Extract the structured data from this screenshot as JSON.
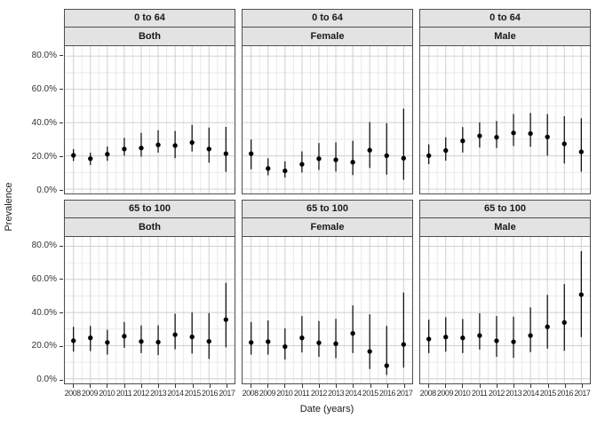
{
  "colors": {
    "background": "#ffffff",
    "strip_bg": "#e3e3e3",
    "panel_border": "#4d4d4d",
    "grid_major": "#cfcfcf",
    "grid_minor": "#e9e9e9",
    "point": "#000000",
    "axis_text": "#333333"
  },
  "chart_data": {
    "type": "pointrange",
    "title": "",
    "xlabel": "Date (years)",
    "ylabel": "Prevalence",
    "grid": true,
    "legend": "none",
    "x": [
      2008,
      2009,
      2010,
      2011,
      2012,
      2013,
      2014,
      2015,
      2016,
      2017
    ],
    "y_tick_labels": [
      "80.0%",
      "60.0%",
      "40.0%",
      "20.0%",
      "0.0%"
    ],
    "y_tick_values": [
      80,
      60,
      40,
      20,
      0
    ],
    "ylim_percent": [
      -3,
      85
    ],
    "facet_row_labels": [
      "0 to 64",
      "65 to 100"
    ],
    "facet_col_labels": [
      "Both",
      "Female",
      "Male"
    ],
    "panels": [
      {
        "age": "0 to 64",
        "sex": "Both",
        "est": [
          20.3,
          18.3,
          21.0,
          24.1,
          24.7,
          26.6,
          26.2,
          28.0,
          24.1,
          21.3
        ],
        "lo": [
          16.9,
          14.5,
          17.0,
          20.1,
          19.5,
          21.9,
          18.6,
          22.6,
          15.9,
          10.4
        ],
        "hi": [
          24.1,
          21.9,
          25.6,
          30.8,
          33.8,
          35.4,
          35.0,
          38.6,
          37.0,
          37.4
        ]
      },
      {
        "age": "0 to 64",
        "sex": "Female",
        "est": [
          21.3,
          12.4,
          11.0,
          14.9,
          18.3,
          17.6,
          16.2,
          23.4,
          20.1,
          18.6
        ],
        "lo": [
          11.9,
          8.3,
          6.9,
          10.0,
          11.5,
          10.5,
          8.4,
          12.7,
          8.7,
          5.6
        ],
        "hi": [
          29.8,
          18.5,
          16.7,
          22.7,
          27.7,
          28.1,
          29.1,
          40.3,
          39.6,
          48.4
        ]
      },
      {
        "age": "0 to 64",
        "sex": "Male",
        "est": [
          20.1,
          23.2,
          29.0,
          32.0,
          31.2,
          33.8,
          33.4,
          31.4,
          27.2,
          22.4
        ],
        "lo": [
          15.0,
          17.1,
          22.0,
          25.0,
          24.7,
          25.9,
          25.4,
          20.1,
          15.4,
          10.5
        ],
        "hi": [
          26.9,
          31.2,
          37.3,
          40.1,
          40.9,
          45.2,
          45.8,
          45.1,
          43.8,
          42.6
        ]
      },
      {
        "age": "65 to 100",
        "sex": "Both",
        "est": [
          23.0,
          24.7,
          21.9,
          25.7,
          22.5,
          22.1,
          26.6,
          25.3,
          22.6,
          35.7
        ],
        "lo": [
          16.4,
          16.7,
          14.6,
          18.7,
          15.5,
          14.3,
          17.8,
          15.2,
          12.0,
          19.0
        ],
        "hi": [
          31.4,
          31.9,
          29.6,
          34.3,
          32.2,
          32.3,
          39.3,
          40.1,
          39.7,
          57.9
        ]
      },
      {
        "age": "65 to 100",
        "sex": "Female",
        "est": [
          21.9,
          22.4,
          19.4,
          24.7,
          21.7,
          21.2,
          27.4,
          16.5,
          7.9,
          20.7
        ],
        "lo": [
          14.6,
          14.6,
          11.6,
          15.9,
          13.2,
          12.4,
          15.5,
          5.9,
          2.3,
          6.7
        ],
        "hi": [
          34.3,
          35.2,
          30.5,
          37.9,
          34.9,
          36.2,
          44.3,
          38.9,
          31.9,
          52.1
        ]
      },
      {
        "age": "65 to 100",
        "sex": "Male",
        "est": [
          24.0,
          25.2,
          24.7,
          26.1,
          22.9,
          22.3,
          26.1,
          31.4,
          34.0,
          50.8
        ],
        "lo": [
          15.5,
          16.4,
          15.5,
          17.6,
          13.2,
          12.6,
          16.1,
          18.2,
          16.9,
          25.2
        ],
        "hi": [
          35.7,
          37.2,
          36.1,
          39.6,
          37.9,
          37.5,
          43.1,
          50.7,
          57.2,
          77.1
        ]
      }
    ]
  }
}
